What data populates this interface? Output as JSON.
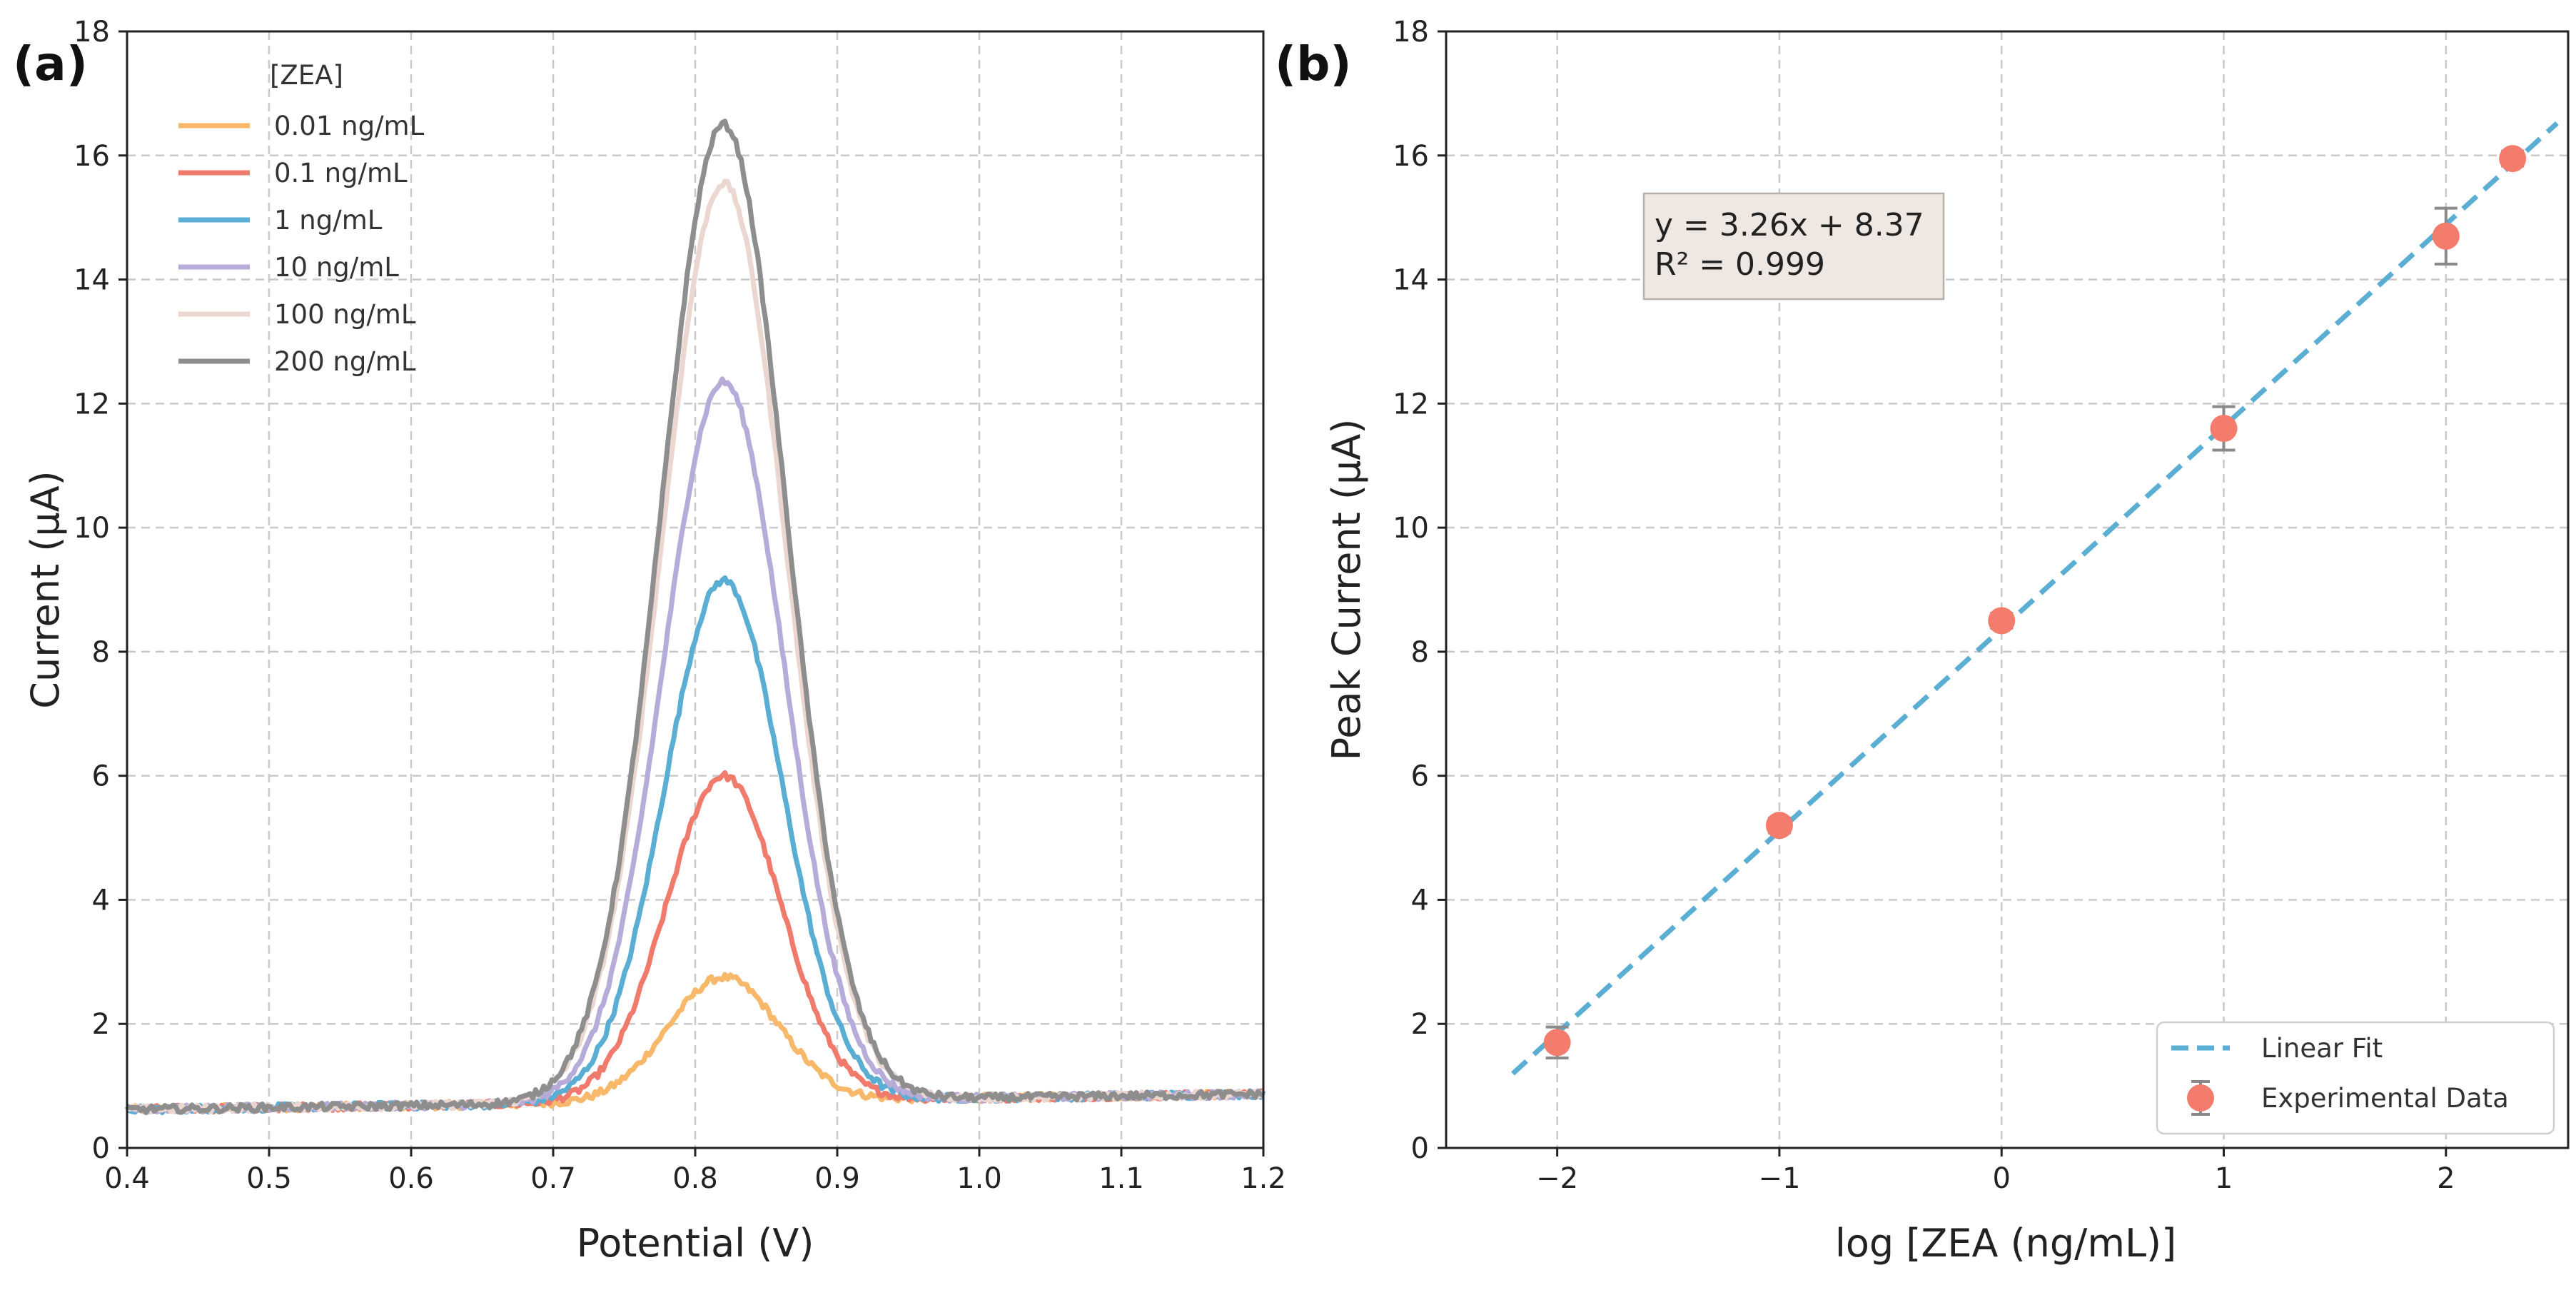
{
  "chart_data": [
    {
      "panel_label": "(a)",
      "type": "line",
      "title": "",
      "xlabel": "Potential (V)",
      "ylabel": "Current (µA)",
      "xlim": [
        0.4,
        1.2
      ],
      "ylim": [
        0,
        18
      ],
      "x_ticks": [
        "0.4",
        "0.5",
        "0.6",
        "0.7",
        "0.8",
        "0.9",
        "1.0",
        "1.1",
        "1.2"
      ],
      "y_ticks": [
        "0",
        "2",
        "4",
        "6",
        "8",
        "10",
        "12",
        "14",
        "16",
        "18"
      ],
      "grid": true,
      "legend_title": "[ZEA]",
      "legend_position": "top-left",
      "series": [
        {
          "name": "0.01 ng/mL",
          "color": "#F7B86A",
          "peak_x": 0.82,
          "peak_y": 2.75
        },
        {
          "name": "0.1 ng/mL",
          "color": "#F07A6C",
          "peak_x": 0.82,
          "peak_y": 6.0
        },
        {
          "name": "1 ng/mL",
          "color": "#5BAED3",
          "peak_x": 0.82,
          "peak_y": 9.15
        },
        {
          "name": "10 ng/mL",
          "color": "#B6ABD9",
          "peak_x": 0.82,
          "peak_y": 12.35
        },
        {
          "name": "100 ng/mL",
          "color": "#EBD7CF",
          "peak_x": 0.82,
          "peak_y": 15.55
        },
        {
          "name": "200 ng/mL",
          "color": "#8E8E8E",
          "peak_x": 0.82,
          "peak_y": 16.5
        }
      ]
    },
    {
      "panel_label": "(b)",
      "type": "scatter",
      "title": "",
      "xlabel": "log [ZEA (ng/mL)]",
      "ylabel": "Peak Current (µA)",
      "xlim": [
        -2.5,
        2.55
      ],
      "ylim": [
        0,
        18
      ],
      "x_ticks": [
        "−2",
        "−1",
        "0",
        "1",
        "2"
      ],
      "x_tick_values": [
        -2,
        -1,
        0,
        1,
        2
      ],
      "y_ticks": [
        "0",
        "2",
        "4",
        "6",
        "8",
        "10",
        "12",
        "14",
        "16",
        "18"
      ],
      "grid": true,
      "legend_position": "bottom-right",
      "annotation": {
        "line1": "y = 3.26x + 8.37",
        "line2": "R² = 0.999"
      },
      "fit": {
        "name": "Linear Fit",
        "slope": 3.26,
        "intercept": 8.37,
        "x_range": [
          -2.2,
          2.5
        ],
        "color": "#5BAED3"
      },
      "points": {
        "name": "Experimental Data",
        "color": "#F47C6C",
        "x": [
          -2,
          -1,
          0,
          1,
          2,
          2.3
        ],
        "y": [
          1.7,
          5.2,
          8.5,
          11.6,
          14.7,
          15.95
        ],
        "err": [
          0.25,
          0.12,
          0.12,
          0.35,
          0.45,
          0.12
        ]
      }
    }
  ]
}
